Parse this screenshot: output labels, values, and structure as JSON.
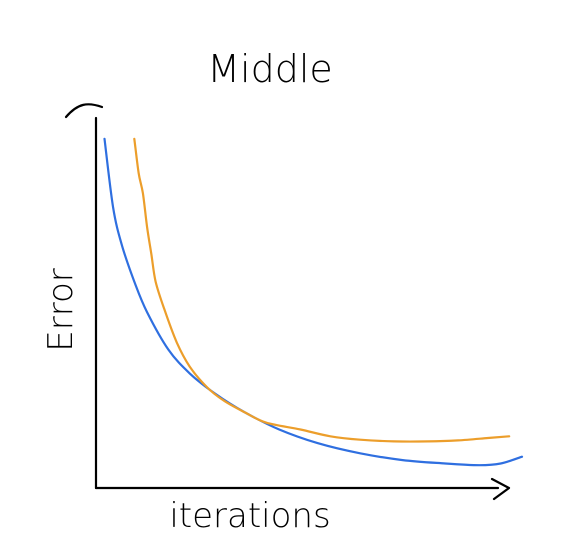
{
  "chart_data": {
    "type": "line",
    "title": "Middle",
    "xlabel": "iterations",
    "ylabel": "Error",
    "grid": false,
    "legend": "none",
    "xlim": [
      0,
      100
    ],
    "ylim": [
      0,
      100
    ],
    "series": [
      {
        "color": "#2f6fe0",
        "x": [
          2,
          4,
          6,
          9,
          12,
          17,
          22,
          28,
          35,
          43,
          52,
          62,
          72,
          82,
          90,
          95,
          100
        ],
        "y": [
          98,
          78,
          67,
          56,
          47,
          36,
          29,
          23,
          17.5,
          12.5,
          8.5,
          5.5,
          3.5,
          2.5,
          2,
          2.5,
          4.5
        ]
      },
      {
        "color": "#ec9e2b",
        "x": [
          9,
          10,
          11,
          12,
          13,
          14,
          16,
          19,
          22,
          26,
          30,
          35,
          40,
          48,
          55,
          62,
          70,
          78,
          85,
          92,
          97
        ],
        "y": [
          98,
          88,
          82,
          72,
          64,
          56,
          48,
          38,
          31,
          25,
          21,
          17.5,
          14.5,
          12.5,
          10.5,
          9.5,
          9,
          9,
          9.3,
          10,
          10.5
        ]
      }
    ]
  }
}
